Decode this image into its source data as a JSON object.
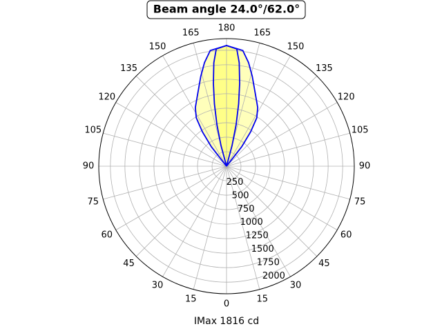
{
  "chart_data": {
    "type": "polar",
    "title": "Beam angle 24.0°/62.0°",
    "x_label": "IMax 1816 cd",
    "rlim": [
      0,
      2200
    ],
    "rticks": [
      250,
      500,
      750,
      1000,
      1250,
      1500,
      1750,
      2000
    ],
    "thetaticks": [
      0,
      15,
      30,
      45,
      60,
      75,
      90,
      105,
      120,
      135,
      150,
      165,
      180,
      {
        "value": 195,
        "label": "165"
      },
      {
        "value": 210,
        "label": "150"
      },
      {
        "value": 225,
        "label": "135"
      },
      {
        "value": 240,
        "label": "120"
      },
      {
        "value": 255,
        "label": "105"
      },
      {
        "value": 270,
        "label": "90"
      },
      {
        "value": 285,
        "label": "75"
      },
      {
        "value": 300,
        "label": "60"
      },
      {
        "value": 315,
        "label": "45"
      },
      {
        "value": 330,
        "label": "30"
      },
      {
        "value": 345,
        "label": "15"
      }
    ],
    "grid": true,
    "series": [
      {
        "color": "#0000ee",
        "fill": "#ffffbb",
        "theta": [
          135,
          142,
          145,
          148,
          152,
          157,
          164,
          168,
          172,
          180,
          188,
          192,
          196,
          203,
          208,
          212,
          215,
          218,
          225
        ],
        "values": [
          0,
          423,
          725,
          983,
          1144,
          1295,
          1610,
          1826,
          2014,
          2081,
          2014,
          1826,
          1610,
          1295,
          1144,
          983,
          725,
          423,
          0
        ]
      },
      {
        "color": "#0000ee",
        "fill": "#ffff88",
        "theta": [
          164,
          165,
          167,
          169,
          171,
          173,
          175,
          180,
          185,
          187,
          189,
          191,
          193,
          195,
          196
        ],
        "values": [
          0,
          369,
          733,
          1092,
          1447,
          1796,
          2029,
          2081,
          2029,
          1796,
          1447,
          1092,
          733,
          369,
          0
        ]
      }
    ]
  }
}
